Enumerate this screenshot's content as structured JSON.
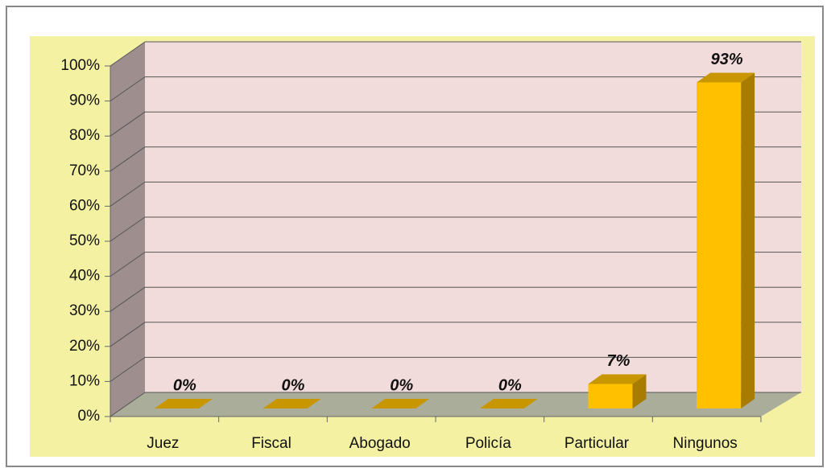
{
  "chart_data": {
    "type": "bar3d",
    "categories": [
      "Juez",
      "Fiscal",
      "Abogado",
      "Policía",
      "Particular",
      "Ningunos"
    ],
    "values": [
      0,
      0,
      0,
      0,
      7,
      93
    ],
    "value_labels": [
      "0%",
      "0%",
      "0%",
      "0%",
      "7%",
      "93%"
    ],
    "color": "#ffc000",
    "ylim": [
      0,
      100
    ],
    "yticks": [
      {
        "value": 0,
        "label": "0%"
      },
      {
        "value": 10,
        "label": "10%"
      },
      {
        "value": 20,
        "label": "20%"
      },
      {
        "value": 30,
        "label": "30%"
      },
      {
        "value": 40,
        "label": "40%"
      },
      {
        "value": 50,
        "label": "50%"
      },
      {
        "value": 60,
        "label": "60%"
      },
      {
        "value": 70,
        "label": "70%"
      },
      {
        "value": 80,
        "label": "80%"
      },
      {
        "value": 90,
        "label": "90%"
      },
      {
        "value": 100,
        "label": "100%"
      }
    ],
    "grid": true
  }
}
